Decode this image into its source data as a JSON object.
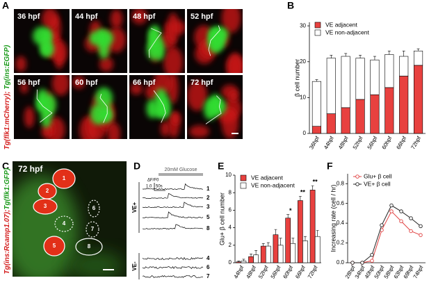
{
  "figure": {
    "panel_labels": [
      "A",
      "B",
      "C",
      "D",
      "E",
      "F"
    ],
    "panel_a": {
      "tiles": [
        "36 hpf",
        "44 hpf",
        "48 hpf",
        "52 hpf",
        "56 hpf",
        "60 hpf",
        "66 hpf",
        "72 hpf"
      ],
      "side_label": [
        "Tg(flk1:mCherry);",
        "Tg(ins:EGFP)"
      ]
    },
    "panel_c": {
      "time": "72 hpf",
      "cells": [
        "1",
        "2",
        "3",
        "4",
        "5",
        "6",
        "7",
        "8"
      ],
      "side_label": [
        "Tg(ins:Rcamp1.07);",
        "Tg(flk1:GFP)"
      ]
    },
    "panel_d": {
      "stimulus": "20mM Glucose",
      "scale_y_unit": "ΔF/F0",
      "scale_y": "1.0",
      "scale_x": "50s",
      "groups": [
        "VE+",
        "VE-"
      ],
      "traces": [
        "1",
        "2",
        "3",
        "5",
        "8",
        "4",
        "6",
        "7"
      ]
    }
  },
  "chart_data": [
    {
      "type": "bar",
      "stacked": true,
      "ylabel": "β cell number",
      "categories": [
        "36hpf",
        "44hpf",
        "48hpf",
        "52hpf",
        "56hpf",
        "60hpf",
        "66hpf",
        "72hpf"
      ],
      "series": [
        {
          "name": "VE adjacent",
          "color": "#e8413f",
          "values": [
            2,
            5.5,
            7.2,
            9.5,
            10.8,
            12.8,
            16,
            19
          ],
          "errors": [
            0.5,
            0.5,
            0.6,
            0.5,
            0.6,
            0.7,
            0.8,
            0.9
          ]
        },
        {
          "name": "VE non-adjacent",
          "color": "#ffffff",
          "values": [
            12.5,
            15.5,
            14.3,
            11.5,
            9.7,
            9.2,
            5.5,
            4
          ],
          "errors": [
            0.5,
            0.8,
            0.8,
            0.8,
            1.0,
            1.0,
            1.5,
            0.6
          ]
        }
      ],
      "ylim": [
        0,
        31
      ],
      "yticks": [
        0,
        10,
        20,
        30
      ],
      "legend": "upper left"
    },
    {
      "type": "bar",
      "stacked": false,
      "ylabel": "Glu+ β cell number",
      "categories": [
        "44hpf",
        "48hpf",
        "52hpf",
        "56hpf",
        "60hpf",
        "66hpf",
        "72hpf"
      ],
      "series": [
        {
          "name": "VE adjacent",
          "color": "#e8413f",
          "values": [
            0.1,
            0.7,
            1.9,
            3.2,
            5.1,
            7.1,
            8.3
          ],
          "errors": [
            0.1,
            0.3,
            0.3,
            0.6,
            0.4,
            0.5,
            0.5
          ]
        },
        {
          "name": "VE non-adjacent",
          "color": "#ffffff",
          "values": [
            0.2,
            0.9,
            1.9,
            2.0,
            2.2,
            2.5,
            3.0
          ],
          "errors": [
            0.2,
            0.5,
            0.4,
            0.8,
            0.6,
            0.5,
            0.7
          ]
        }
      ],
      "significance": [
        null,
        null,
        null,
        null,
        "*",
        "**",
        "**"
      ],
      "ylim": [
        0,
        10
      ],
      "yticks": [
        0,
        2,
        4,
        6,
        8,
        10
      ],
      "legend": "upper left"
    },
    {
      "type": "line",
      "ylabel": "Increasing rate (cell / hr)",
      "categories": [
        "28hpf",
        "34hpf",
        "40hpf",
        "50hpf",
        "58hpf",
        "63hpf",
        "69hpf",
        "74hpf"
      ],
      "series": [
        {
          "name": "Glu+ β cell",
          "color": "#e04040",
          "values": [
            0,
            0,
            0.02,
            0.33,
            0.52,
            0.42,
            0.32,
            0.28
          ]
        },
        {
          "name": "VE+ β cell",
          "color": "#222222",
          "values": [
            0,
            0,
            0.08,
            0.38,
            0.58,
            0.52,
            0.45,
            0.37
          ]
        }
      ],
      "ylim": [
        0,
        0.9
      ],
      "yticks": [
        {
          "value": 0,
          "label": "0.0"
        },
        0.2,
        0.4,
        0.6,
        0.8
      ],
      "legend": "upper left"
    }
  ]
}
